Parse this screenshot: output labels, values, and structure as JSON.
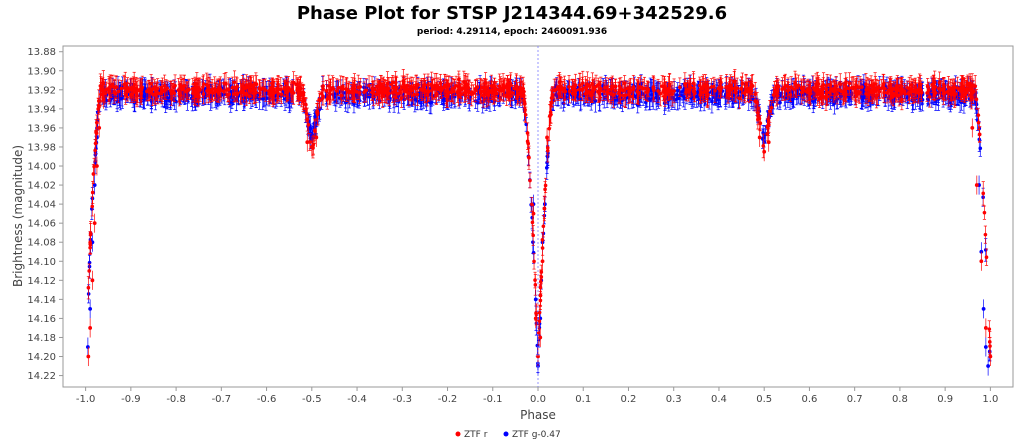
{
  "chart_data": {
    "type": "scatter",
    "title": "Phase Plot for STSP J214344.69+342529.6",
    "subtitle": "period: 4.29114, epoch: 2460091.936",
    "xlabel": "Phase",
    "ylabel": "Brightness (magnitude)",
    "xlim": [
      -1.05,
      1.05
    ],
    "ylim": [
      13.874,
      14.232
    ],
    "y_inverted": true,
    "x_ticks": [
      "-1.0",
      "-0.9",
      "-0.8",
      "-0.7",
      "-0.6",
      "-0.5",
      "-0.4",
      "-0.3",
      "-0.2",
      "-0.1",
      "0.0",
      "0.1",
      "0.2",
      "0.3",
      "0.4",
      "0.5",
      "0.6",
      "0.7",
      "0.8",
      "0.9",
      "1.0"
    ],
    "y_ticks": [
      "13.88",
      "13.90",
      "13.92",
      "13.94",
      "13.96",
      "13.98",
      "14.00",
      "14.02",
      "14.04",
      "14.06",
      "14.08",
      "14.10",
      "14.12",
      "14.14",
      "14.16",
      "14.18",
      "14.20",
      "14.22"
    ],
    "grid": false,
    "reference_line_x": 0.0,
    "legend_position": "bottom-center",
    "series": [
      {
        "name": "ZTF r",
        "color": "#ff0000",
        "out_of_eclipse_mag": 13.92,
        "scatter": 0.012,
        "error_bar": 0.01,
        "primary_eclipse": {
          "phase": 0.0,
          "depth_mag": 14.2,
          "width": 0.035
        },
        "secondary_eclipse": {
          "phase": 0.5,
          "depth_mag": 13.985,
          "width": 0.025
        },
        "x": [
          -0.994,
          -0.99,
          -0.985,
          -0.98,
          -0.975,
          -0.97,
          -0.96,
          -0.5,
          -0.49,
          -0.51,
          -0.01,
          -0.005,
          0.0,
          0.005,
          0.01,
          0.02,
          0.49,
          0.5,
          0.51,
          0.96,
          0.97,
          0.98,
          0.99,
          1.0
        ],
        "y": [
          14.2,
          14.17,
          14.12,
          14.06,
          14.0,
          13.96,
          13.93,
          13.98,
          13.97,
          13.975,
          14.05,
          14.16,
          14.2,
          14.18,
          14.1,
          13.97,
          13.97,
          13.985,
          13.975,
          13.96,
          14.02,
          14.1,
          14.17,
          14.2
        ]
      },
      {
        "name": "ZTF g-0.47",
        "color": "#0000ff",
        "out_of_eclipse_mag": 13.925,
        "scatter": 0.013,
        "error_bar": 0.01,
        "primary_eclipse": {
          "phase": 0.0,
          "depth_mag": 14.21,
          "width": 0.035
        },
        "secondary_eclipse": {
          "phase": 0.5,
          "depth_mag": 13.975,
          "width": 0.025
        },
        "x": [
          -0.995,
          -0.99,
          -0.985,
          -0.98,
          -0.975,
          -0.5,
          -0.01,
          -0.005,
          0.0,
          0.005,
          0.01,
          0.5,
          0.975,
          0.98,
          0.985,
          0.99,
          0.995
        ],
        "y": [
          14.19,
          14.15,
          14.08,
          14.02,
          13.97,
          13.97,
          14.04,
          14.14,
          14.21,
          14.16,
          14.08,
          13.975,
          14.02,
          14.09,
          14.15,
          14.19,
          14.21
        ]
      }
    ],
    "legend": [
      {
        "label": "ZTF r",
        "color": "#ff0000"
      },
      {
        "label": "ZTF g-0.47",
        "color": "#0000ff"
      }
    ]
  }
}
